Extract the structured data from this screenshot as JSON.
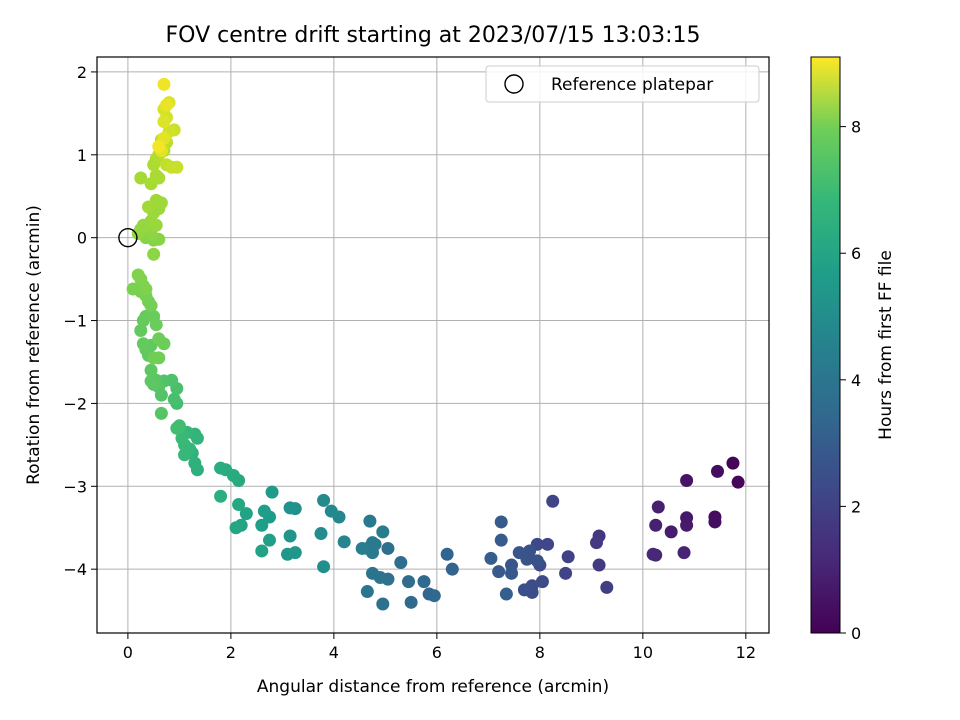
{
  "chart_data": {
    "type": "scatter",
    "title": "FOV centre drift starting at 2023/07/15 13:03:15",
    "xlabel": "Angular distance from reference (arcmin)",
    "ylabel": "Rotation from reference (arcmin)",
    "xlim": [
      -0.6,
      12.45
    ],
    "ylim": [
      -4.77,
      2.18
    ],
    "xticks": [
      0,
      2,
      4,
      6,
      8,
      10,
      12
    ],
    "yticks": [
      -4,
      -3,
      -2,
      -1,
      0,
      1,
      2
    ],
    "grid": true,
    "legend": {
      "placement": "upper right",
      "entries": [
        "Reference platepar"
      ]
    },
    "reference_point": {
      "x": 0,
      "y": 0,
      "marker": "open-circle"
    },
    "colorbar": {
      "label": "Hours from first FF file",
      "colormap": "viridis",
      "range": [
        0,
        9.1
      ],
      "ticks": [
        0,
        2,
        4,
        6,
        8
      ]
    },
    "series": [
      {
        "color_by": "hours",
        "points": [
          [
            11.75,
            -2.72,
            0.1
          ],
          [
            11.85,
            -2.95,
            0.15
          ],
          [
            11.45,
            -2.82,
            0.3
          ],
          [
            11.4,
            -3.37,
            0.25
          ],
          [
            11.4,
            -3.43,
            0.35
          ],
          [
            10.85,
            -2.93,
            0.5
          ],
          [
            10.85,
            -3.38,
            0.6
          ],
          [
            10.85,
            -3.47,
            0.65
          ],
          [
            10.55,
            -3.55,
            0.7
          ],
          [
            10.3,
            -3.25,
            0.8
          ],
          [
            10.25,
            -3.47,
            0.85
          ],
          [
            10.8,
            -3.8,
            0.9
          ],
          [
            10.25,
            -3.83,
            0.95
          ],
          [
            10.2,
            -3.82,
            1.0
          ],
          [
            9.15,
            -3.6,
            1.5
          ],
          [
            9.1,
            -3.68,
            1.55
          ],
          [
            9.15,
            -3.95,
            1.6
          ],
          [
            9.3,
            -4.22,
            1.7
          ],
          [
            8.55,
            -3.85,
            1.8
          ],
          [
            8.5,
            -4.05,
            1.85
          ],
          [
            8.25,
            -3.18,
            1.9
          ],
          [
            8.15,
            -3.7,
            1.95
          ],
          [
            7.95,
            -3.7,
            2.0
          ],
          [
            8.0,
            -3.95,
            2.05
          ],
          [
            8.05,
            -4.15,
            2.1
          ],
          [
            7.85,
            -4.2,
            2.15
          ],
          [
            7.85,
            -4.28,
            2.2
          ],
          [
            7.7,
            -4.25,
            2.25
          ],
          [
            7.8,
            -3.78,
            2.3
          ],
          [
            7.75,
            -3.88,
            2.35
          ],
          [
            7.6,
            -3.8,
            2.4
          ],
          [
            7.45,
            -3.95,
            2.45
          ],
          [
            7.45,
            -4.05,
            2.5
          ],
          [
            7.2,
            -4.03,
            2.55
          ],
          [
            7.25,
            -3.65,
            2.6
          ],
          [
            7.25,
            -3.43,
            2.65
          ],
          [
            7.05,
            -3.87,
            2.7
          ],
          [
            7.35,
            -4.3,
            2.75
          ],
          [
            7.95,
            -3.9,
            2.3
          ],
          [
            6.3,
            -4.0,
            2.9
          ],
          [
            6.2,
            -3.82,
            2.95
          ],
          [
            5.85,
            -4.3,
            3.0
          ],
          [
            5.95,
            -4.32,
            3.05
          ],
          [
            5.75,
            -4.15,
            3.1
          ],
          [
            5.5,
            -4.4,
            3.15
          ],
          [
            5.45,
            -4.15,
            3.2
          ],
          [
            5.3,
            -3.92,
            3.25
          ],
          [
            5.05,
            -3.75,
            3.3
          ],
          [
            5.05,
            -4.12,
            3.35
          ],
          [
            4.95,
            -4.42,
            3.4
          ],
          [
            4.9,
            -4.1,
            3.45
          ],
          [
            4.75,
            -4.05,
            3.5
          ],
          [
            4.65,
            -4.27,
            3.55
          ],
          [
            4.65,
            -3.75,
            3.6
          ],
          [
            4.75,
            -3.68,
            3.65
          ],
          [
            4.75,
            -3.8,
            3.7
          ],
          [
            4.7,
            -3.42,
            3.75
          ],
          [
            4.95,
            -3.55,
            3.8
          ],
          [
            4.55,
            -3.75,
            3.85
          ],
          [
            4.8,
            -3.7,
            3.7
          ],
          [
            4.2,
            -3.67,
            4.1
          ],
          [
            4.1,
            -3.37,
            4.2
          ],
          [
            3.95,
            -3.3,
            4.3
          ],
          [
            3.8,
            -3.17,
            4.35
          ],
          [
            3.75,
            -3.57,
            4.4
          ],
          [
            3.8,
            -3.97,
            4.5
          ],
          [
            3.25,
            -3.27,
            4.6
          ],
          [
            3.15,
            -3.26,
            4.65
          ],
          [
            3.15,
            -3.6,
            4.7
          ],
          [
            3.1,
            -3.82,
            4.75
          ],
          [
            3.25,
            -3.8,
            4.8
          ],
          [
            2.8,
            -3.07,
            4.9
          ],
          [
            2.75,
            -3.37,
            5.0
          ],
          [
            2.65,
            -3.3,
            5.05
          ],
          [
            2.6,
            -3.47,
            5.1
          ],
          [
            2.75,
            -3.65,
            5.15
          ],
          [
            2.6,
            -3.78,
            5.2
          ],
          [
            2.3,
            -3.33,
            5.25
          ],
          [
            2.2,
            -3.47,
            5.3
          ],
          [
            2.1,
            -3.5,
            5.35
          ],
          [
            2.15,
            -3.22,
            5.4
          ],
          [
            2.15,
            -2.93,
            5.5
          ],
          [
            2.05,
            -2.87,
            5.55
          ],
          [
            1.9,
            -2.8,
            5.6
          ],
          [
            1.8,
            -2.78,
            5.65
          ],
          [
            1.8,
            -3.12,
            5.7
          ],
          [
            1.35,
            -2.8,
            5.75
          ],
          [
            1.3,
            -2.72,
            5.8
          ],
          [
            1.25,
            -2.6,
            5.85
          ],
          [
            1.35,
            -2.42,
            5.9
          ],
          [
            1.3,
            -2.37,
            5.95
          ],
          [
            1.2,
            -2.55,
            6.0
          ],
          [
            1.15,
            -2.35,
            6.05
          ],
          [
            1.1,
            -2.5,
            6.1
          ],
          [
            1.1,
            -2.62,
            6.1
          ],
          [
            1.05,
            -2.42,
            6.15
          ],
          [
            1.0,
            -2.3,
            6.2
          ],
          [
            1.0,
            -2.27,
            6.25
          ],
          [
            0.95,
            -2.3,
            6.3
          ],
          [
            0.95,
            -2.0,
            6.35
          ],
          [
            0.9,
            -1.95,
            6.4
          ],
          [
            0.95,
            -1.82,
            6.45
          ],
          [
            0.85,
            -1.72,
            6.5
          ],
          [
            0.7,
            -1.73,
            6.55
          ],
          [
            0.65,
            -1.9,
            6.6
          ],
          [
            0.65,
            -2.12,
            6.62
          ],
          [
            0.6,
            -1.8,
            6.65
          ],
          [
            0.55,
            -1.72,
            6.7
          ],
          [
            0.5,
            -1.77,
            6.72
          ],
          [
            0.45,
            -1.73,
            6.75
          ],
          [
            0.45,
            -1.6,
            6.78
          ],
          [
            0.4,
            -1.42,
            6.8
          ],
          [
            0.45,
            -1.3,
            6.82
          ],
          [
            0.35,
            -1.35,
            6.85
          ],
          [
            0.3,
            -1.28,
            6.88
          ],
          [
            0.25,
            -1.12,
            6.9
          ],
          [
            0.3,
            -1.0,
            6.92
          ],
          [
            0.35,
            -0.95,
            6.95
          ],
          [
            0.5,
            -0.95,
            6.97
          ],
          [
            0.55,
            -1.05,
            7.0
          ],
          [
            0.6,
            -1.22,
            7.02
          ],
          [
            0.7,
            -1.28,
            7.05
          ],
          [
            0.6,
            -1.45,
            7.07
          ],
          [
            0.5,
            -1.45,
            7.1
          ],
          [
            0.4,
            -0.77,
            7.12
          ],
          [
            0.45,
            -0.82,
            7.15
          ],
          [
            0.35,
            -0.7,
            7.18
          ],
          [
            0.25,
            -0.65,
            7.2
          ],
          [
            0.2,
            -0.62,
            7.22
          ],
          [
            0.1,
            -0.62,
            7.25
          ],
          [
            0.3,
            -0.58,
            7.27
          ],
          [
            0.35,
            -0.62,
            7.3
          ],
          [
            0.25,
            -0.5,
            7.32
          ],
          [
            0.2,
            -0.45,
            7.35
          ],
          [
            0.35,
            0.0,
            7.4
          ],
          [
            0.5,
            -0.03,
            7.42
          ],
          [
            0.6,
            -0.02,
            7.45
          ],
          [
            0.5,
            -0.2,
            7.5
          ],
          [
            0.45,
            0.05,
            7.52
          ],
          [
            0.25,
            0.1,
            7.55
          ],
          [
            0.35,
            0.12,
            7.58
          ],
          [
            0.2,
            0.05,
            7.6
          ],
          [
            0.3,
            0.15,
            7.62
          ],
          [
            0.45,
            0.2,
            7.65
          ],
          [
            0.55,
            0.15,
            7.68
          ],
          [
            0.5,
            0.3,
            7.7
          ],
          [
            0.6,
            0.35,
            7.72
          ],
          [
            0.65,
            0.42,
            7.75
          ],
          [
            0.55,
            0.45,
            7.78
          ],
          [
            0.4,
            0.37,
            7.8
          ],
          [
            0.25,
            0.72,
            7.85
          ],
          [
            0.45,
            0.65,
            7.88
          ],
          [
            0.55,
            0.75,
            7.9
          ],
          [
            0.6,
            0.72,
            7.92
          ],
          [
            0.5,
            0.88,
            7.95
          ],
          [
            0.55,
            0.95,
            8.0
          ],
          [
            0.6,
            1.0,
            8.05
          ],
          [
            0.7,
            1.05,
            8.1
          ],
          [
            0.75,
            1.15,
            8.15
          ],
          [
            0.65,
            1.18,
            8.2
          ],
          [
            0.75,
            0.88,
            8.25
          ],
          [
            0.85,
            0.85,
            8.3
          ],
          [
            0.95,
            0.85,
            8.35
          ],
          [
            0.9,
            1.3,
            8.4
          ],
          [
            0.8,
            1.28,
            8.45
          ],
          [
            0.75,
            1.45,
            8.5
          ],
          [
            0.7,
            1.55,
            8.55
          ],
          [
            0.8,
            1.63,
            8.6
          ],
          [
            0.7,
            1.4,
            8.65
          ],
          [
            0.65,
            1.05,
            8.7
          ],
          [
            0.7,
            1.2,
            8.75
          ],
          [
            0.75,
            1.6,
            8.8
          ],
          [
            0.7,
            1.85,
            8.9
          ],
          [
            0.6,
            1.1,
            8.95
          ]
        ]
      }
    ]
  }
}
